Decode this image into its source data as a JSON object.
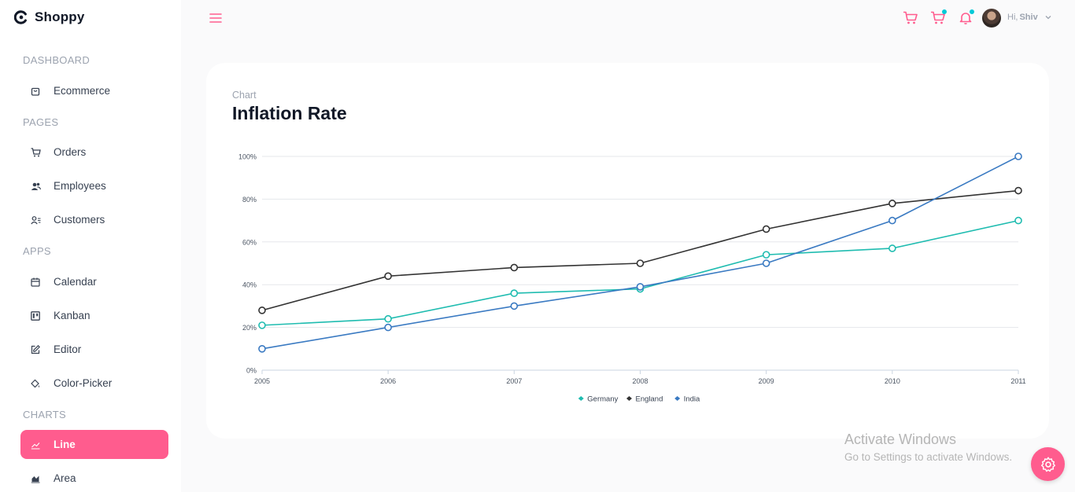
{
  "brand": {
    "name": "Shoppy"
  },
  "sidebar": {
    "sections": {
      "dashboard": "DASHBOARD",
      "pages": "PAGES",
      "apps": "APPS",
      "charts": "CHARTS"
    },
    "items": {
      "ecommerce": "Ecommerce",
      "orders": "Orders",
      "employees": "Employees",
      "customers": "Customers",
      "calendar": "Calendar",
      "kanban": "Kanban",
      "editor": "Editor",
      "color_picker": "Color-Picker",
      "line": "Line",
      "area": "Area"
    },
    "active_item": "Line"
  },
  "header": {
    "greeting": "Hi,",
    "user_name": "Shiv",
    "accent_color": "#ff5c8e",
    "notification_dot_color": "#03c9d7"
  },
  "page": {
    "subtitle": "Chart",
    "title": "Inflation Rate"
  },
  "chart_data": {
    "type": "line",
    "title": "Inflation Rate",
    "x": [
      "2005",
      "2006",
      "2007",
      "2008",
      "2009",
      "2010",
      "2011"
    ],
    "ylim": [
      0,
      100
    ],
    "yticks": [
      "0%",
      "20%",
      "40%",
      "60%",
      "80%",
      "100%"
    ],
    "grid": true,
    "legend_position": "bottom",
    "series": [
      {
        "name": "Germany",
        "color": "#1fbcb0",
        "values": [
          21,
          24,
          36,
          38,
          54,
          57,
          70
        ]
      },
      {
        "name": "England",
        "color": "#333333",
        "values": [
          28,
          44,
          48,
          50,
          66,
          78,
          84
        ]
      },
      {
        "name": "India",
        "color": "#3a7ac2",
        "values": [
          10,
          20,
          30,
          39,
          50,
          70,
          100
        ]
      }
    ]
  },
  "watermark": {
    "line1": "Activate Windows",
    "line2": "Go to Settings to activate Windows."
  }
}
